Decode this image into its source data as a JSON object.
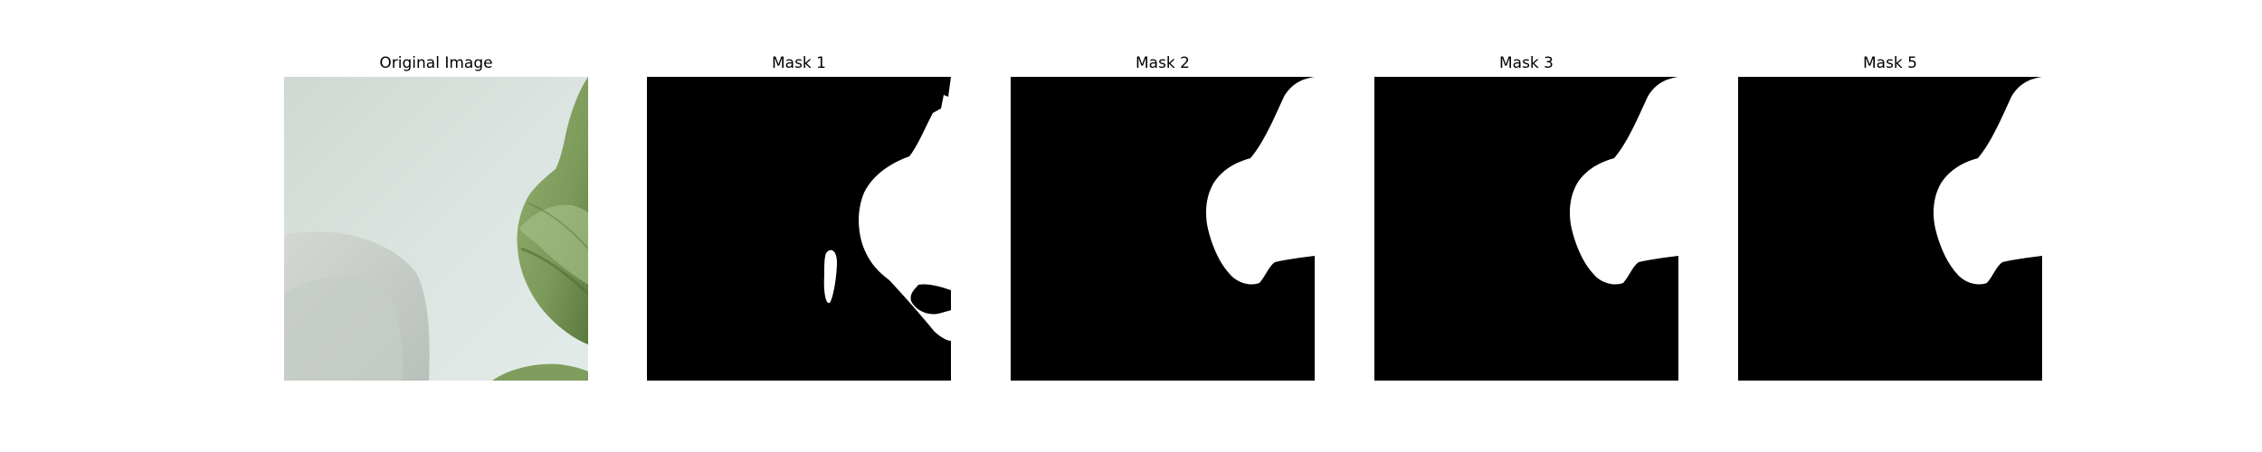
{
  "figure": {
    "panels": [
      {
        "title": "Original Image",
        "kind": "photo",
        "colors": {
          "background": "#d9e2de",
          "leaf": "#7f9e5d",
          "leaf_dark": "#4f6f35",
          "shadow": "#b9c1bb"
        }
      },
      {
        "title": "Mask 1",
        "kind": "mask",
        "colors": {
          "background": "#000000",
          "foreground": "#ffffff"
        }
      },
      {
        "title": "Mask 2",
        "kind": "mask",
        "colors": {
          "background": "#000000",
          "foreground": "#ffffff"
        }
      },
      {
        "title": "Mask 3",
        "kind": "mask",
        "colors": {
          "background": "#000000",
          "foreground": "#ffffff"
        }
      },
      {
        "title": "Mask 5",
        "kind": "mask",
        "colors": {
          "background": "#000000",
          "foreground": "#ffffff"
        }
      }
    ]
  }
}
